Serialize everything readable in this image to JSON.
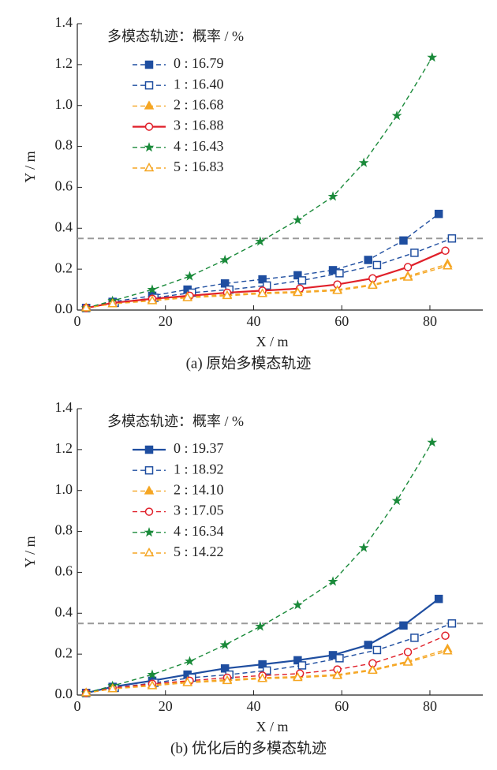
{
  "chart_data": [
    {
      "type": "line",
      "caption": "(a) 原始多模态轨迹",
      "x_label": "X / m",
      "y_label": "Y / m",
      "legend_title": "多模态轨迹：概率 / %",
      "legend": "upper left",
      "xlim": [
        0,
        92
      ],
      "ylim": [
        0,
        1.4
      ],
      "xticks": [
        0,
        20,
        40,
        60,
        80
      ],
      "yticks": [
        {
          "value": 0,
          "label": "0.0"
        },
        0.2,
        0.4,
        0.6,
        0.8,
        {
          "value": 1,
          "label": "1.0"
        },
        1.2,
        1.4
      ],
      "hline": 0.35,
      "series": [
        {
          "name": "0 : 16.79",
          "color": "#1f4ea0",
          "dashed": true,
          "marker": "square-filled",
          "x": [
            2,
            8,
            17,
            25,
            33.5,
            42,
            50,
            58,
            66,
            74,
            82
          ],
          "values": [
            0.01,
            0.04,
            0.07,
            0.1,
            0.13,
            0.15,
            0.17,
            0.195,
            0.245,
            0.34,
            0.47
          ]
        },
        {
          "name": "1 : 16.40",
          "color": "#1f4ea0",
          "dashed": true,
          "marker": "square-open",
          "x": [
            2,
            8.5,
            17.5,
            26,
            34.5,
            43,
            51,
            59.5,
            68,
            76.5,
            85
          ],
          "values": [
            0.01,
            0.035,
            0.06,
            0.085,
            0.1,
            0.12,
            0.145,
            0.18,
            0.22,
            0.28,
            0.35
          ]
        },
        {
          "name": "2 : 16.68",
          "color": "#f5a623",
          "dashed": true,
          "marker": "triangle-filled",
          "x": [
            2,
            8,
            17,
            25,
            34,
            42,
            50,
            59,
            67,
            75,
            84
          ],
          "values": [
            0.01,
            0.03,
            0.05,
            0.065,
            0.075,
            0.085,
            0.09,
            0.1,
            0.125,
            0.165,
            0.225
          ]
        },
        {
          "name": "3 : 16.88",
          "color": "#e0202a",
          "dashed": false,
          "marker": "circle-open",
          "x": [
            2,
            8,
            17,
            25.5,
            34,
            42,
            50.5,
            59,
            67,
            75,
            83.5
          ],
          "values": [
            0.01,
            0.035,
            0.055,
            0.07,
            0.085,
            0.095,
            0.105,
            0.125,
            0.155,
            0.21,
            0.29
          ]
        },
        {
          "name": "4 : 16.43",
          "color": "#1a8a3a",
          "dashed": true,
          "marker": "star",
          "x": [
            2,
            8,
            17,
            25.5,
            33.5,
            41.5,
            50,
            58,
            65,
            72.5,
            80.5
          ],
          "values": [
            0.01,
            0.045,
            0.1,
            0.165,
            0.245,
            0.335,
            0.44,
            0.555,
            0.72,
            0.95,
            1.235
          ]
        },
        {
          "name": "5 : 16.83",
          "color": "#f5a623",
          "dashed": true,
          "marker": "triangle-open",
          "x": [
            2,
            8,
            17,
            25,
            34,
            42,
            50,
            59,
            67,
            75,
            84
          ],
          "values": [
            0.01,
            0.03,
            0.045,
            0.06,
            0.07,
            0.08,
            0.085,
            0.095,
            0.12,
            0.16,
            0.215
          ]
        }
      ]
    },
    {
      "type": "line",
      "caption": "(b) 优化后的多模态轨迹",
      "x_label": "X / m",
      "y_label": "Y / m",
      "legend_title": "多模态轨迹：概率 / %",
      "legend": "upper left",
      "xlim": [
        0,
        92
      ],
      "ylim": [
        0,
        1.4
      ],
      "xticks": [
        0,
        20,
        40,
        60,
        80
      ],
      "yticks": [
        {
          "value": 0,
          "label": "0.0"
        },
        0.2,
        0.4,
        0.6,
        0.8,
        {
          "value": 1,
          "label": "1.0"
        },
        1.2,
        1.4
      ],
      "hline": 0.35,
      "series": [
        {
          "name": "0 : 19.37",
          "color": "#1f4ea0",
          "dashed": false,
          "marker": "square-filled",
          "x": [
            2,
            8,
            17,
            25,
            33.5,
            42,
            50,
            58,
            66,
            74,
            82
          ],
          "values": [
            0.01,
            0.04,
            0.07,
            0.1,
            0.13,
            0.15,
            0.17,
            0.195,
            0.245,
            0.34,
            0.47
          ]
        },
        {
          "name": "1 : 18.92",
          "color": "#1f4ea0",
          "dashed": true,
          "marker": "square-open",
          "x": [
            2,
            8.5,
            17.5,
            26,
            34.5,
            43,
            51,
            59.5,
            68,
            76.5,
            85
          ],
          "values": [
            0.01,
            0.035,
            0.06,
            0.085,
            0.1,
            0.12,
            0.145,
            0.18,
            0.22,
            0.28,
            0.35
          ]
        },
        {
          "name": "2 : 14.10",
          "color": "#f5a623",
          "dashed": true,
          "marker": "triangle-filled",
          "x": [
            2,
            8,
            17,
            25,
            34,
            42,
            50,
            59,
            67,
            75,
            84
          ],
          "values": [
            0.01,
            0.03,
            0.05,
            0.065,
            0.075,
            0.085,
            0.09,
            0.1,
            0.125,
            0.165,
            0.225
          ]
        },
        {
          "name": "3 : 17.05",
          "color": "#e0202a",
          "dashed": true,
          "marker": "circle-open",
          "x": [
            2,
            8,
            17,
            25.5,
            34,
            42,
            50.5,
            59,
            67,
            75,
            83.5
          ],
          "values": [
            0.01,
            0.035,
            0.055,
            0.07,
            0.085,
            0.095,
            0.105,
            0.125,
            0.155,
            0.21,
            0.29
          ]
        },
        {
          "name": "4 : 16.34",
          "color": "#1a8a3a",
          "dashed": true,
          "marker": "star",
          "x": [
            2,
            8,
            17,
            25.5,
            33.5,
            41.5,
            50,
            58,
            65,
            72.5,
            80.5
          ],
          "values": [
            0.01,
            0.045,
            0.1,
            0.165,
            0.245,
            0.335,
            0.44,
            0.555,
            0.72,
            0.95,
            1.235
          ]
        },
        {
          "name": "5 : 14.22",
          "color": "#f5a623",
          "dashed": true,
          "marker": "triangle-open",
          "x": [
            2,
            8,
            17,
            25,
            34,
            42,
            50,
            59,
            67,
            75,
            84
          ],
          "values": [
            0.01,
            0.03,
            0.045,
            0.06,
            0.07,
            0.08,
            0.085,
            0.095,
            0.12,
            0.16,
            0.215
          ]
        }
      ]
    }
  ]
}
